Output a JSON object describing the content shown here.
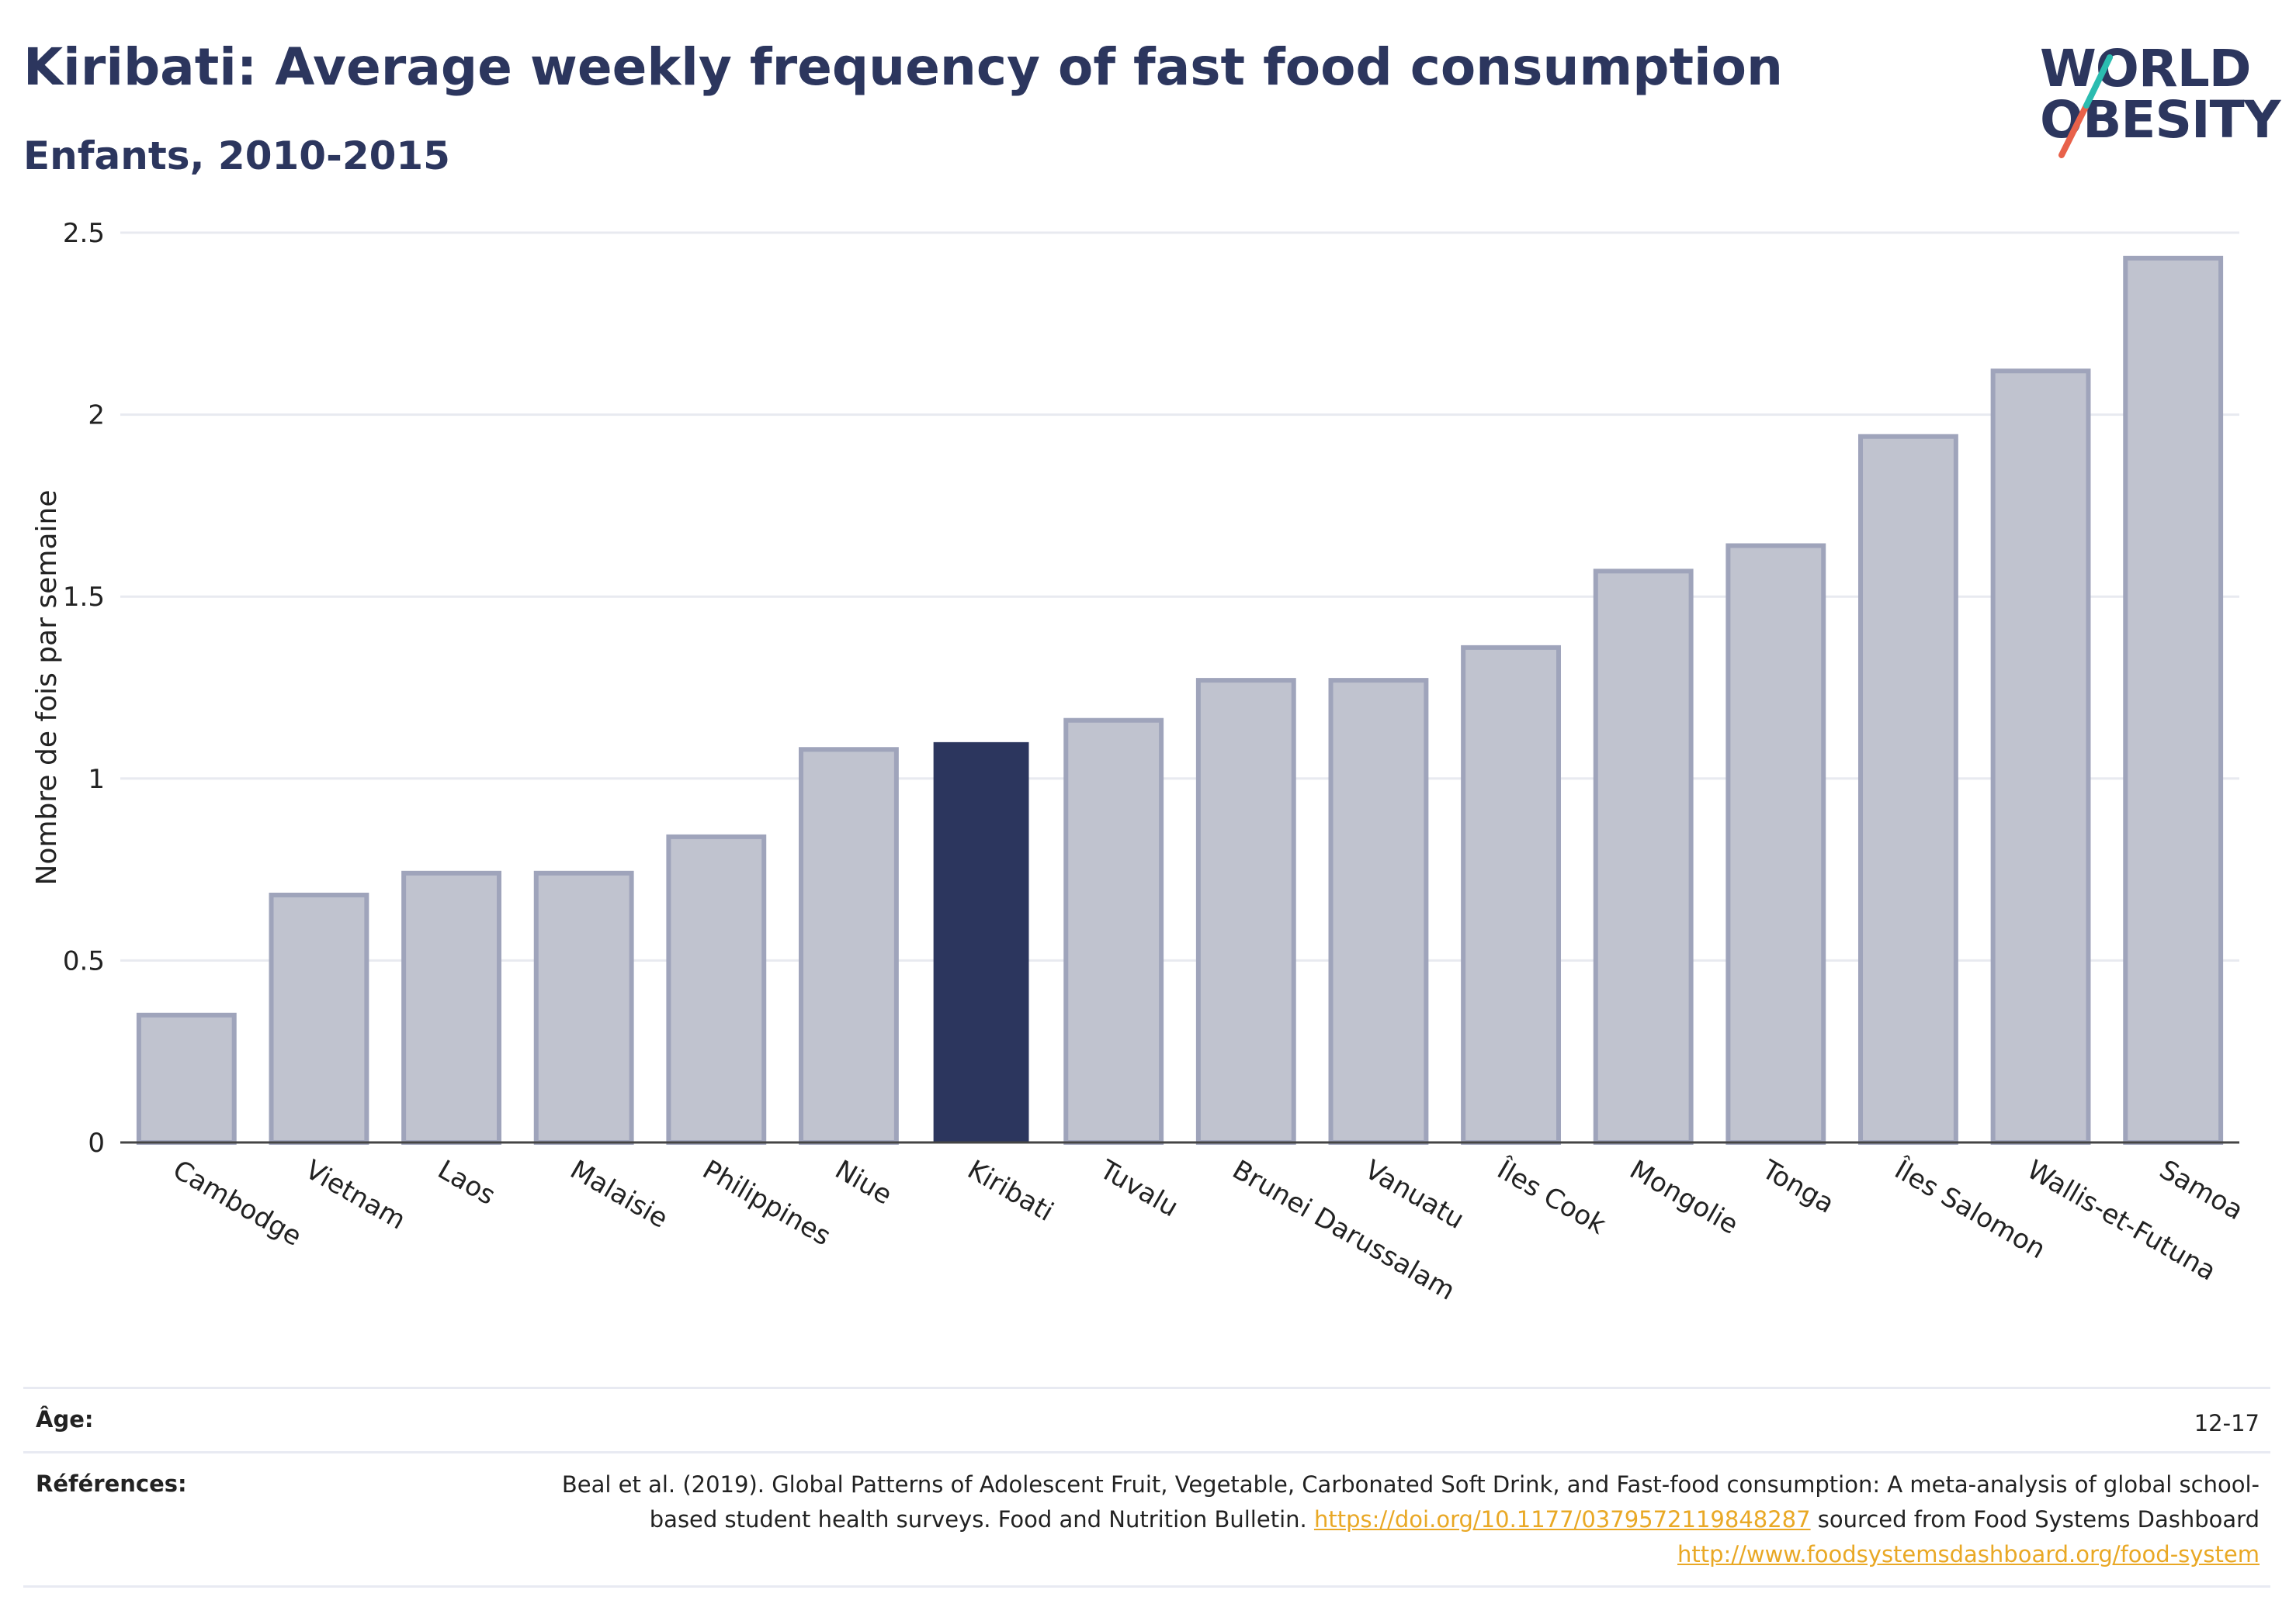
{
  "header": {
    "title": "Kiribati: Average weekly frequency of fast food consumption",
    "subtitle": "Enfants, 2010-2015"
  },
  "logo": {
    "line1": "WORLD",
    "line2": "OBESITY",
    "slash_colors": [
      "#2bbcb0",
      "#e8614a"
    ],
    "icon": "world-obesity-logo"
  },
  "chart_data": {
    "type": "bar",
    "ylabel": "Nombre de fois par semaine",
    "xlabel": "",
    "ylim": [
      0,
      2.5
    ],
    "yticks": [
      0,
      0.5,
      1,
      1.5,
      2,
      2.5
    ],
    "ytick_labels": [
      "0",
      "0.5",
      "1",
      "1.5",
      "2",
      "2.5"
    ],
    "grid": true,
    "highlight": "Kiribati",
    "colors": {
      "default": "#c0c3cf",
      "default_border": "#9fa4bb",
      "highlight": "#2c365e"
    },
    "categories": [
      "Cambodge",
      "Vietnam",
      "Laos",
      "Malaisie",
      "Philippines",
      "Niue",
      "Kiribati",
      "Tuvalu",
      "Brunei Darussalam",
      "Vanuatu",
      "Îles Cook",
      "Mongolie",
      "Tonga",
      "Îles Salomon",
      "Wallis-et-Futuna",
      "Samoa"
    ],
    "values": [
      0.35,
      0.68,
      0.74,
      0.74,
      0.84,
      1.08,
      1.1,
      1.16,
      1.27,
      1.27,
      1.36,
      1.57,
      1.64,
      1.94,
      2.12,
      2.43
    ]
  },
  "meta": {
    "age_label": "Âge:",
    "age_value": "12-17",
    "ref_label": "Références:",
    "ref_text1": "Beal et al. (2019). Global Patterns of Adolescent Fruit, Vegetable, Carbonated Soft Drink, and Fast-food consumption: A meta-analysis of global school-based student health surveys. Food and Nutrition Bulletin.",
    "ref_link1": "https://doi.org/10.1177/0379572119848287",
    "ref_text2": "sourced from Food Systems Dashboard",
    "ref_link2": "http://www.foodsystemsdashboard.org/food-system"
  }
}
